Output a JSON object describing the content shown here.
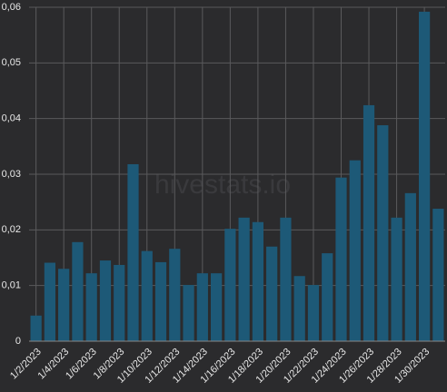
{
  "chart_data": {
    "type": "bar",
    "watermark": "hivestats.io",
    "categories": [
      "1/2/2023",
      null,
      "1/4/2023",
      null,
      "1/6/2023",
      null,
      "1/8/2023",
      null,
      "1/10/2023",
      null,
      "1/12/2023",
      null,
      "1/14/2023",
      null,
      "1/16/2023",
      null,
      "1/18/2023",
      null,
      "1/20/2023",
      null,
      "1/22/2023",
      null,
      "1/24/2023",
      null,
      "1/26/2023",
      null,
      "1/28/2023",
      null,
      "1/30/2023",
      null
    ],
    "values": [
      0.0046,
      0.0141,
      0.013,
      0.0178,
      0.0122,
      0.0145,
      0.0137,
      0.0318,
      0.0162,
      0.0142,
      0.0166,
      0.0101,
      0.0122,
      0.0122,
      0.0202,
      0.0222,
      0.0214,
      0.017,
      0.0222,
      0.0117,
      0.0101,
      0.0158,
      0.0294,
      0.0325,
      0.0424,
      0.0388,
      0.0222,
      0.0266,
      0.0592,
      0.0238
    ],
    "color": "#1d5977",
    "ylim": [
      0,
      0.06
    ],
    "yticks": [
      0,
      {
        "value": 0.01,
        "label": "0,01"
      },
      {
        "value": 0.02,
        "label": "0,02"
      },
      {
        "value": 0.03,
        "label": "0,03"
      },
      {
        "value": 0.04,
        "label": "0,04"
      },
      {
        "value": 0.05,
        "label": "0,05"
      },
      {
        "value": 0.06,
        "label": "0,06"
      }
    ],
    "grid": true
  }
}
